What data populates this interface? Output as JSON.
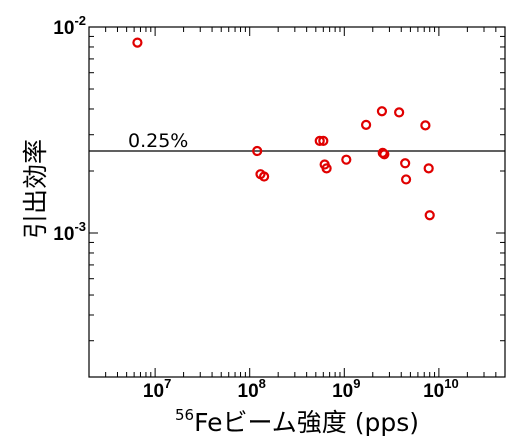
{
  "chart_data": {
    "type": "scatter",
    "title": "",
    "x_scale": "log",
    "y_scale": "log",
    "xlim": [
      2000000,
      50000000000
    ],
    "ylim": [
      0.0002,
      0.01
    ],
    "grid": false,
    "legend": "none",
    "xlabel": {
      "superscript": "56",
      "text": "Feビーム強度 (pps)"
    },
    "ylabel": "引出効率",
    "x_ticks": [
      {
        "value": 10000000,
        "base": "10",
        "exp": "7"
      },
      {
        "value": 100000000,
        "base": "10",
        "exp": "8"
      },
      {
        "value": 1000000000,
        "base": "10",
        "exp": "9"
      },
      {
        "value": 10000000000,
        "base": "10",
        "exp": "10"
      }
    ],
    "y_ticks": [
      {
        "value": 0.01,
        "base": "10",
        "exp": "-2"
      },
      {
        "value": 0.001,
        "base": "10",
        "exp": "-3"
      }
    ],
    "reference_line": {
      "y": 0.0025,
      "label": "0.25%",
      "color": "#000000"
    },
    "series": [
      {
        "marker": "open-circle",
        "color": "#e00000",
        "points": [
          {
            "x": 6500000,
            "y": 0.0084
          },
          {
            "x": 120000000,
            "y": 0.0025
          },
          {
            "x": 130000000,
            "y": 0.00193
          },
          {
            "x": 142000000,
            "y": 0.00188
          },
          {
            "x": 550000000,
            "y": 0.0028
          },
          {
            "x": 600000000,
            "y": 0.0028
          },
          {
            "x": 620000000,
            "y": 0.00215
          },
          {
            "x": 650000000,
            "y": 0.00206
          },
          {
            "x": 1050000000,
            "y": 0.00227
          },
          {
            "x": 1700000000,
            "y": 0.00335
          },
          {
            "x": 2500000000,
            "y": 0.0039
          },
          {
            "x": 2550000000,
            "y": 0.00245
          },
          {
            "x": 2650000000,
            "y": 0.00241
          },
          {
            "x": 3800000000,
            "y": 0.00385
          },
          {
            "x": 4400000000,
            "y": 0.00218
          },
          {
            "x": 4500000000,
            "y": 0.00182
          },
          {
            "x": 7200000000,
            "y": 0.00333
          },
          {
            "x": 7800000000,
            "y": 0.00206
          },
          {
            "x": 8000000000,
            "y": 0.00122
          }
        ]
      }
    ]
  }
}
